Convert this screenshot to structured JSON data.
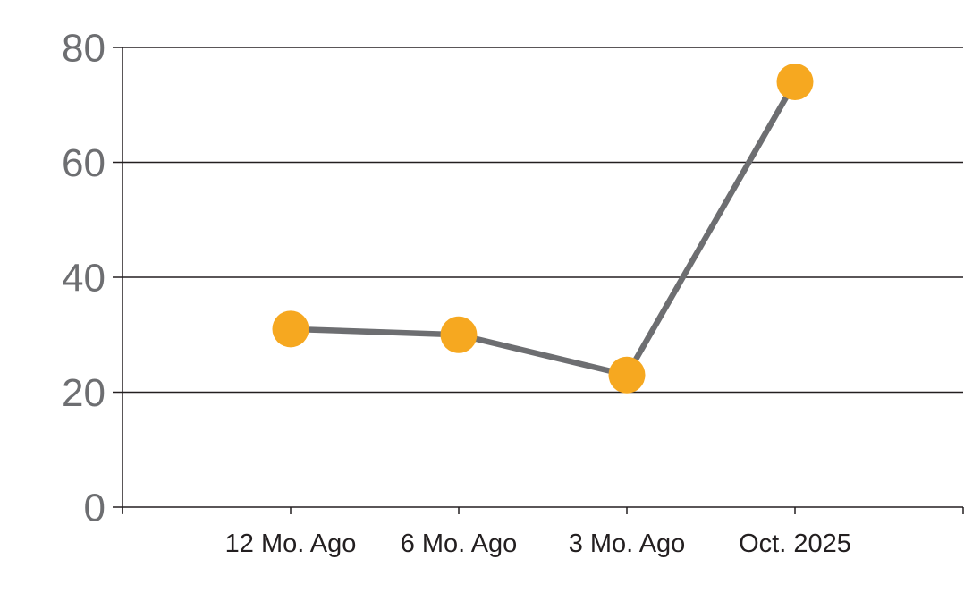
{
  "chart_data": {
    "type": "line",
    "categories": [
      "12 Mo. Ago",
      "6 Mo. Ago",
      "3 Mo. Ago",
      "Oct. 2025"
    ],
    "values": [
      31,
      30,
      23,
      74
    ],
    "series": [
      {
        "name": "value",
        "values": [
          31,
          30,
          23,
          74
        ]
      }
    ],
    "title": "",
    "xlabel": "",
    "ylabel": "",
    "ylim": [
      0,
      80
    ],
    "yticks": [
      0,
      20,
      40,
      60,
      80
    ],
    "grid": "horizontal",
    "legend": "none",
    "marker_style": "filled-circle",
    "colors": {
      "marker": "#F6A820",
      "line": "#6D6E71",
      "axis": "#231F20",
      "grid": "#231F20",
      "ytick_label": "#6D6E71",
      "xtick_label": "#231F20",
      "background": "#FFFFFF"
    }
  }
}
